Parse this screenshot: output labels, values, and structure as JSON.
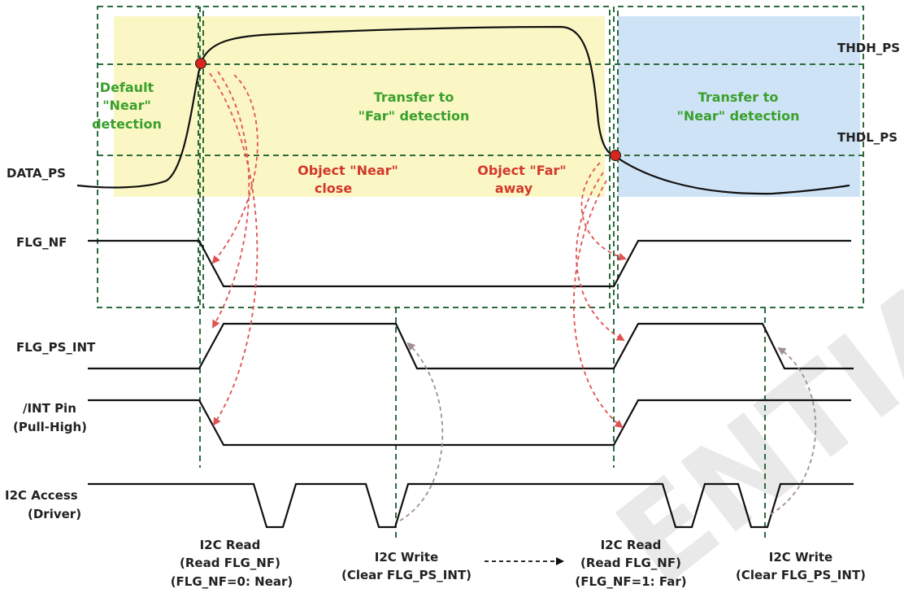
{
  "watermark": "ENTIAL",
  "signals": {
    "data_ps": "DATA_PS",
    "flg_nf": "FLG_NF",
    "flg_ps_int": "FLG_PS_INT",
    "int_pin": [
      "/INT Pin",
      "(Pull-High)"
    ],
    "i2c_access": [
      "I2C Access",
      "(Driver)"
    ]
  },
  "thresholds": {
    "high": "THDH_PS",
    "low": "THDL_PS"
  },
  "regions": {
    "default_near": [
      "Default",
      "\"Near\"",
      "detection"
    ],
    "transfer_far": [
      "Transfer to",
      "\"Far\" detection"
    ],
    "transfer_near": [
      "Transfer to",
      "\"Near\" detection"
    ]
  },
  "events": {
    "object_near": [
      "Object \"Near\"",
      "close"
    ],
    "object_far": [
      "Object \"Far\"",
      "away"
    ]
  },
  "operations": {
    "read_1": [
      "I2C Read",
      "(Read FLG_NF)",
      "(FLG_NF=0: Near)"
    ],
    "write_1": [
      "I2C Write",
      "(Clear FLG_PS_INT)"
    ],
    "read_2": [
      "I2C Read",
      "(Read FLG_NF)",
      "(FLG_NF=1: Far)"
    ],
    "write_2": [
      "I2C Write",
      "(Clear FLG_PS_INT)"
    ]
  },
  "colors": {
    "far_zone": "#fbf7c4",
    "near_zone": "#cfe3f7",
    "grid_dash": "#2e6b3e",
    "event_arrow": "#e05252",
    "clear_arrow": "#a48c96",
    "marker": "#d8261c"
  }
}
